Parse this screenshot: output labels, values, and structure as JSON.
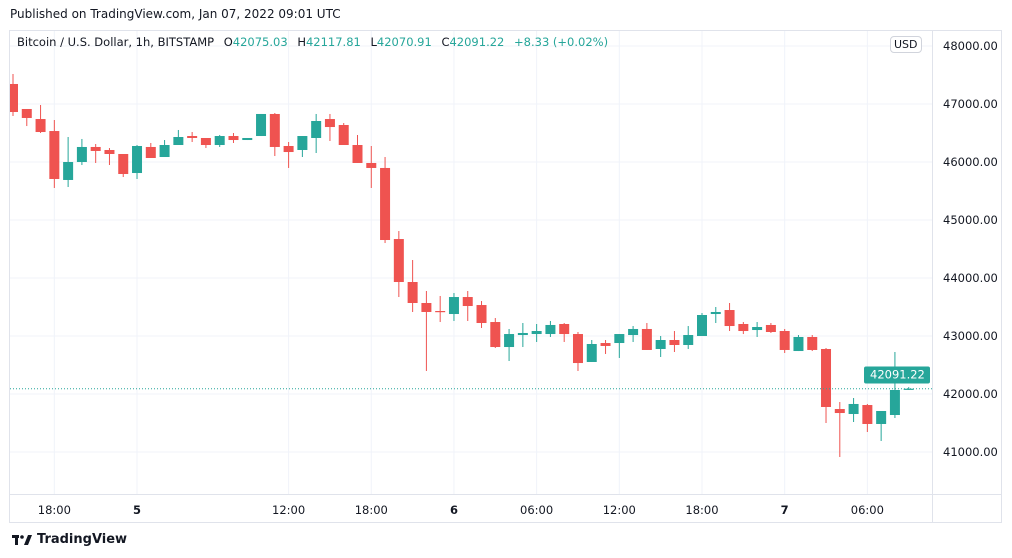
{
  "header": {
    "published": "Published on TradingView.com, Jan 07, 2022 09:01 UTC"
  },
  "legend": {
    "symbol": "Bitcoin / U.S. Dollar, 1h, BITSTAMP",
    "o_key": "O",
    "o": "42075.03",
    "h_key": "H",
    "h": "42117.81",
    "l_key": "L",
    "l": "42070.91",
    "c_key": "C",
    "c": "42091.22",
    "change": "+8.33 (+0.02%)"
  },
  "currency": "USD",
  "last_price": "42091.22",
  "footer": {
    "brand": "TradingView",
    "logo_icon": "tradingview-logo-icon"
  },
  "colors": {
    "up": "#26a69a",
    "down": "#ef5350",
    "grid": "#f0f3fa"
  },
  "chart_data": {
    "type": "candlestick",
    "interval": "1h",
    "ylim": [
      40500,
      48000
    ],
    "grid": true,
    "last_price_line": 42091.22,
    "y_ticks": [
      "48000.00",
      "47000.00",
      "46000.00",
      "45000.00",
      "44000.00",
      "43000.00",
      "42000.00",
      "41000.00"
    ],
    "x_ticks": [
      {
        "label": "18:00",
        "index": 3,
        "bold": false
      },
      {
        "label": "5",
        "index": 9,
        "bold": true
      },
      {
        "label": "12:00",
        "index": 20,
        "bold": false
      },
      {
        "label": "18:00",
        "index": 26,
        "bold": false
      },
      {
        "label": "6",
        "index": 32,
        "bold": true
      },
      {
        "label": "06:00",
        "index": 38,
        "bold": false
      },
      {
        "label": "12:00",
        "index": 44,
        "bold": false
      },
      {
        "label": "18:00",
        "index": 50,
        "bold": false
      },
      {
        "label": "7",
        "index": 56,
        "bold": true
      },
      {
        "label": "06:00",
        "index": 62,
        "bold": false
      }
    ],
    "ohlc_fields": [
      "open",
      "high",
      "low",
      "close"
    ],
    "candles": [
      [
        47345,
        47517,
        46793,
        46862
      ],
      [
        46914,
        46914,
        46620,
        46759
      ],
      [
        46741,
        46983,
        46500,
        46517
      ],
      [
        46534,
        46724,
        45552,
        45707
      ],
      [
        45690,
        46431,
        45569,
        46000
      ],
      [
        46000,
        46397,
        45948,
        46259
      ],
      [
        46259,
        46310,
        45983,
        46190
      ],
      [
        46207,
        46241,
        45948,
        46138
      ],
      [
        46138,
        46138,
        45741,
        45793
      ],
      [
        45810,
        46293,
        45707,
        46276
      ],
      [
        46259,
        46328,
        46069,
        46069
      ],
      [
        46086,
        46379,
        46086,
        46293
      ],
      [
        46293,
        46552,
        46293,
        46431
      ],
      [
        46448,
        46517,
        46345,
        46414
      ],
      [
        46414,
        46414,
        46241,
        46293
      ],
      [
        46293,
        46466,
        46259,
        46448
      ],
      [
        46448,
        46500,
        46328,
        46379
      ],
      [
        46379,
        46414,
        46379,
        46414
      ],
      [
        46448,
        46828,
        46448,
        46828
      ],
      [
        46828,
        46845,
        46103,
        46259
      ],
      [
        46276,
        46345,
        45897,
        46172
      ],
      [
        46207,
        46448,
        46086,
        46448
      ],
      [
        46414,
        46828,
        46155,
        46707
      ],
      [
        46741,
        46828,
        46362,
        46603
      ],
      [
        46638,
        46672,
        46293,
        46293
      ],
      [
        46293,
        46466,
        45983,
        45983
      ],
      [
        45983,
        46276,
        45552,
        45897
      ],
      [
        45897,
        46086,
        44603,
        44655
      ],
      [
        44672,
        44810,
        43672,
        43931
      ],
      [
        43931,
        44310,
        43414,
        43569
      ],
      [
        43569,
        43776,
        42397,
        43414
      ],
      [
        43431,
        43690,
        43241,
        43414
      ],
      [
        43379,
        43741,
        43259,
        43672
      ],
      [
        43672,
        43776,
        43259,
        43517
      ],
      [
        43534,
        43603,
        43138,
        43224
      ],
      [
        43241,
        43310,
        42793,
        42810
      ],
      [
        42810,
        43121,
        42569,
        43034
      ],
      [
        43017,
        43224,
        42810,
        43052
      ],
      [
        43034,
        43207,
        42897,
        43086
      ],
      [
        43034,
        43259,
        42983,
        43190
      ],
      [
        43207,
        43224,
        42897,
        43034
      ],
      [
        43034,
        43069,
        42397,
        42534
      ],
      [
        42552,
        42931,
        42552,
        42862
      ],
      [
        42879,
        42931,
        42690,
        42828
      ],
      [
        42879,
        43034,
        42621,
        43034
      ],
      [
        43017,
        43172,
        42897,
        43121
      ],
      [
        43121,
        43224,
        42759,
        42759
      ],
      [
        42776,
        43000,
        42638,
        42931
      ],
      [
        42931,
        43086,
        42724,
        42845
      ],
      [
        42845,
        43172,
        42776,
        43017
      ],
      [
        43000,
        43397,
        43000,
        43362
      ],
      [
        43379,
        43500,
        43224,
        43414
      ],
      [
        43448,
        43569,
        43086,
        43172
      ],
      [
        43207,
        43241,
        43034,
        43086
      ],
      [
        43103,
        43241,
        42983,
        43155
      ],
      [
        43190,
        43224,
        43052,
        43069
      ],
      [
        43086,
        43121,
        42707,
        42759
      ],
      [
        42741,
        43017,
        42741,
        42983
      ],
      [
        42983,
        43017,
        42741,
        42759
      ],
      [
        42776,
        42793,
        41500,
        41776
      ],
      [
        41741,
        41862,
        40914,
        41672
      ],
      [
        41655,
        41931,
        41517,
        41828
      ],
      [
        41810,
        41828,
        41345,
        41483
      ],
      [
        41483,
        41707,
        41190,
        41707
      ],
      [
        41638,
        42724,
        41586,
        42069
      ],
      [
        42075.03,
        42117.81,
        42070.91,
        42091.22
      ]
    ]
  }
}
